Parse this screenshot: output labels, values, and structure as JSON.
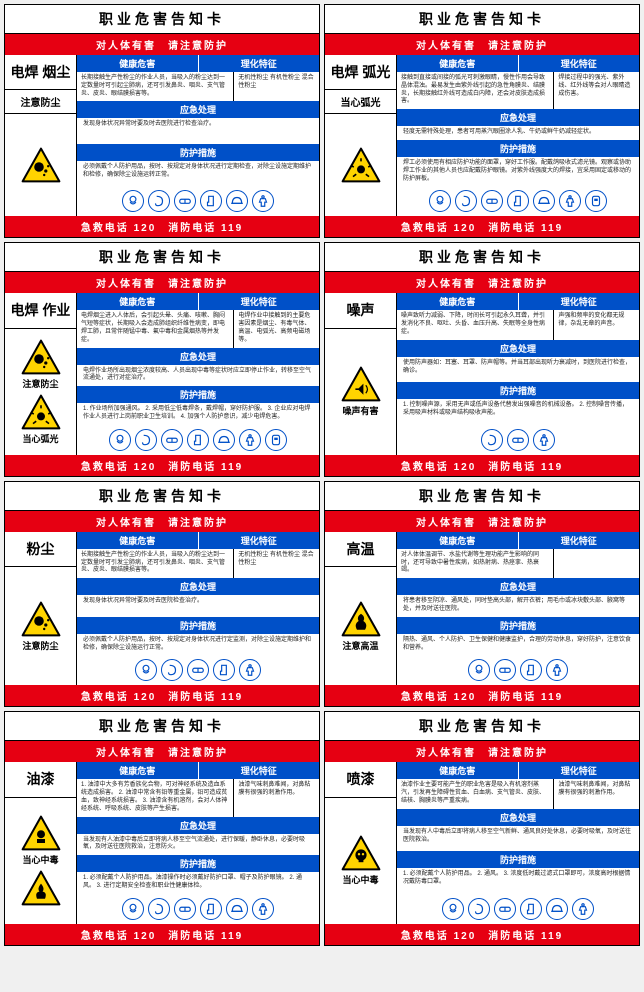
{
  "common": {
    "title": "职业危害告知卡",
    "warning_bar": "对人体有害　请注意防护",
    "headers": {
      "health": "健康危害",
      "features": "理化特征",
      "emergency": "应急处理",
      "protection": "防护措施"
    },
    "footer": "急救电话 120　消防电话 119"
  },
  "cards": [
    {
      "hazard": "电焊\n烟尘",
      "mid_warn": "注意防尘",
      "warns": [
        {
          "icon": "dust",
          "label": ""
        }
      ],
      "health": "长期接触生产性粉尘的作业人员，当吸入的粉尘达到一定数量时可引起尘肺病，还可引发鼻炎、咽炎、支气管炎、皮炎、眼结膜损害等。",
      "features": "无机性粉尘\n有机性粉尘\n混合性粉尘",
      "emergency": "发现身体状况异常时要及时去医院进行检查治疗。",
      "protection": "必须佩戴个人防护用品，按时、按规定对身体状况进行定期检查，对除尘设施定期维护和检修，确保除尘设施运转正常。",
      "ppe": [
        "mask",
        "ear",
        "goggles",
        "gloves",
        "helmet",
        "suit"
      ]
    },
    {
      "hazard": "电焊\n弧光",
      "mid_warn": "当心弧光",
      "warns": [
        {
          "icon": "arc",
          "label": ""
        }
      ],
      "health": "接触到直接或间接的弧光可刺激眼睛，慢性作用会导致晶体混浊。最易发生由紫外线引起的急性角膜炎、结膜炎，长期接触红外线可造成白内障，还会对皮肤造成损害。",
      "features": "焊接过程中的强光、紫外线、红外线等会对人眼睛造成伤害。",
      "emergency": "轻度无需特殊处理，患者可用蒸汽眼圈涂人乳、牛奶或鲜牛奶减轻症状。",
      "protection": "焊工必须使用有相应防护功能的面罩，穿好工作服。配戴鸽吸收式滤光镜。观察或协助焊工作业的其他人员也应配戴防护眼镜。对紫外线强度大的焊接，宜采用固定或移动的防护屏板。",
      "ppe": [
        "mask",
        "ear",
        "goggles",
        "gloves",
        "helmet",
        "suit",
        "shield"
      ]
    },
    {
      "hazard": "电焊\n作业",
      "mid_warn": "",
      "warns": [
        {
          "icon": "dust",
          "label": "注意防尘"
        },
        {
          "icon": "arc",
          "label": "当心弧光"
        }
      ],
      "health": "电焊烟尘进入人体后，会引起头晕、头痛、咳嗽、胸闷气短等症状，长期吸入会造成肺组织纤维性病变，即电焊工肺，且常伴随锰中毒、氟中毒和金属烟热等并发症。",
      "features": "电焊作业中接触到的主要危害因素是烟尘、有毒气体、高温、电弧光、高频电磁场等。",
      "emergency": "电焊作业场所出现烟尘浓度较高、人员出现中毒等症状时应立即停止作业，转移至空气流通处，进行对症治疗。",
      "protection": "1. 作业场所加强通风。\n2. 采用低尘低毒焊条，戴焊帽，穿好防护服。\n3. 企业应对电焊作业人员进行上岗前职业卫生培训。\n4. 加强个人防护意识，减少电焊危害。",
      "ppe": [
        "mask",
        "ear",
        "goggles",
        "gloves",
        "helmet",
        "suit",
        "shield"
      ]
    },
    {
      "hazard": "噪声",
      "mid_warn": "",
      "warns": [
        {
          "icon": "noise",
          "label": "噪声有害"
        }
      ],
      "health": "噪声致听力减弱、下降，时间长可引起永久耳聋，并引发消化不良、呕吐、头昏、血压升高、失眠等全身性病症。",
      "features": "声强和频率的变化都无规律，杂乱无章的声音。",
      "emergency": "使用防声器如：耳塞、耳罩、防声帽等。并当耳部出现听力衰减时，到医院进行检查，确诊。",
      "protection": "1. 控制噪声源，采用无声或低声设备代替发出强噪音的机械设备。\n2. 控制噪音传播，采用吸声材料或吸声结构吸收声能。",
      "ppe": [
        "ear",
        "goggles",
        "suit"
      ]
    },
    {
      "hazard": "粉尘",
      "mid_warn": "",
      "warns": [
        {
          "icon": "dust",
          "label": "注意防尘"
        }
      ],
      "health": "长期接触生产性粉尘的作业人员，当吸入的粉尘达到一定数量时可引发尘肺病，还可引发鼻炎、咽炎、支气管炎、皮炎、眼结膜损害等。",
      "features": "无机性粉尘\n有机性粉尘\n混合性粉尘",
      "emergency": "发现身体状况异常时要及时去医院检查治疗。",
      "protection": "必须佩戴个人防护用品，按时、按规定对身体状况进行定监测，对除尘设施定期维护和检修，确保除尘设施运行正常。",
      "ppe": [
        "mask",
        "ear",
        "goggles",
        "gloves",
        "suit"
      ]
    },
    {
      "hazard": "高温",
      "mid_warn": "",
      "warns": [
        {
          "icon": "heat",
          "label": "注意高温"
        }
      ],
      "health": "对人体体温调节、水盐代谢等生理功能产生影响的同时，还可导致中暑性疾病，如热射病、热痉挛、热衰竭。",
      "emergency": "将患者移至阴凉、通风处，同时垫高头部，解开衣裤；用毛巾或冰块敷头部、腋窝等处，并及时送往医院。",
      "protection": "隔热、通风、个人防护、卫生保健和健康监护，合理的劳动休息，穿好防护，注意饮食和营养。",
      "ppe": [
        "mask",
        "goggles",
        "gloves",
        "suit"
      ]
    },
    {
      "hazard": "油漆",
      "mid_warn": "",
      "warns": [
        {
          "icon": "toxic",
          "label": "当心中毒"
        },
        {
          "icon": "fire",
          "label": ""
        }
      ],
      "health": "1. 油漆中大多有芳香族化合物，可对神经系统及造血系统造成损害。\n2. 油漆中常含有铅等重金属，铅可造成贫血，致神经系统损害。\n3. 油漆含有机溶剂，会对人体神经系统、呼吸系统、皮肤等产生损害。",
      "features": "油漆气味刺鼻难闻，对鼻粘膜有很强的刺激作用。",
      "emergency": "当发现有人油漆中毒后立即将病人移至空气流通处，进行保暖，静卧休息，必要时吸氧，及时送往医院救治，注意防火。",
      "protection": "1. 必须配戴个人防护用品。油漆操作时必须戴好防护口罩、帽子及防护眼镜。\n2. 通风。\n3. 进行定期安全检查和职业性健康体检。",
      "ppe": [
        "mask",
        "ear",
        "goggles",
        "gloves",
        "helmet",
        "suit"
      ]
    },
    {
      "hazard": "喷漆",
      "mid_warn": "",
      "warns": [
        {
          "icon": "skull",
          "label": "当心中毒"
        }
      ],
      "health": "油漆作业主要可能产生的职业危害是吸入有机溶剂蒸汽，引发再生障碍性贫血、白血病、支气管炎、皮肤、结核、胸膜炎等严重疾病。",
      "features": "油漆气味刺鼻难闻，对鼻粘膜有很强的刺激作用。",
      "emergency": "当发现有人中毒后立即将病人移至空气新鲜、通风良好处休息，必要时吸氧，及时送往医院救治。",
      "protection": "1. 必须配戴个人防护用品。\n2. 通风。\n3. 浓度低时戴过滤式口罩即可，浓度高时根据情况戴防毒口罩。",
      "ppe": [
        "mask",
        "ear",
        "goggles",
        "gloves",
        "helmet",
        "suit"
      ]
    }
  ]
}
